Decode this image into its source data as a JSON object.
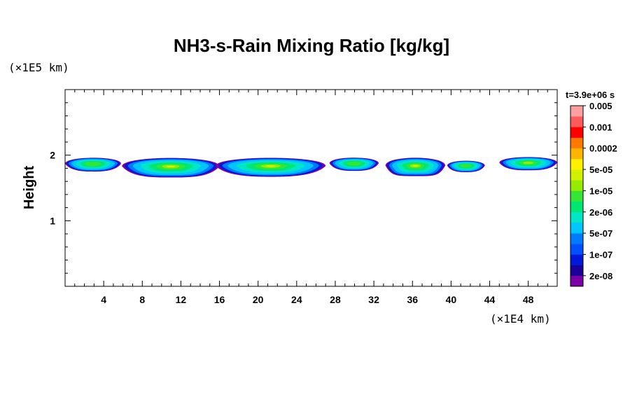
{
  "chart_data": {
    "type": "heatmap",
    "title": "NH3-s-Rain Mixing Ratio [kg/kg]",
    "xlabel": "",
    "x_unit": "(×1E4 km)",
    "ylabel": "Height",
    "y_unit": "(×1E5 km)",
    "time_label": "t=3.9e+06 s",
    "xlim": [
      0,
      51
    ],
    "ylim": [
      0,
      3
    ],
    "x_ticks": [
      4,
      8,
      12,
      16,
      20,
      24,
      28,
      32,
      36,
      40,
      44,
      48
    ],
    "x_tick_labels": [
      "4",
      "8",
      "12",
      "16",
      "20",
      "24",
      "28",
      "32",
      "36",
      "40",
      "44",
      "48"
    ],
    "y_ticks": [
      1,
      2
    ],
    "y_tick_labels": [
      "1",
      "2"
    ],
    "x_minor_step": 1,
    "y_minor_step": 0.2,
    "colorbar": {
      "colors": [
        "#7a00a8",
        "#1a0096",
        "#0019d9",
        "#0050ff",
        "#007bff",
        "#00c5ff",
        "#00e6c6",
        "#00e672",
        "#32e633",
        "#96eb00",
        "#d3f000",
        "#fff000",
        "#ffb400",
        "#ff7800",
        "#ff0000",
        "#ff5a5a",
        "#ffa0a0"
      ],
      "labels": [
        "2e-08",
        "1e-07",
        "5e-07",
        "2e-06",
        "1e-05",
        "5e-05",
        "0.0002",
        "0.001",
        "0.005"
      ]
    },
    "clouds": [
      {
        "x0": 0.0,
        "x1": 5.8,
        "top": 1.99,
        "bottom": 1.75,
        "core": 1.5
      },
      {
        "x0": 5.9,
        "x1": 16.0,
        "top": 2.0,
        "bottom": 1.66,
        "core": 4.0
      },
      {
        "x0": 15.6,
        "x1": 27.0,
        "top": 2.0,
        "bottom": 1.67,
        "core": 3.0
      },
      {
        "x0": 27.4,
        "x1": 32.5,
        "top": 1.99,
        "bottom": 1.76,
        "core": 1.5
      },
      {
        "x0": 33.2,
        "x1": 39.4,
        "top": 2.0,
        "bottom": 1.68,
        "core": 4.0
      },
      {
        "x0": 39.6,
        "x1": 43.5,
        "top": 1.94,
        "bottom": 1.74,
        "core": 1.0
      },
      {
        "x0": 45.0,
        "x1": 51.0,
        "top": 2.0,
        "bottom": 1.77,
        "core": 2.0
      }
    ]
  }
}
